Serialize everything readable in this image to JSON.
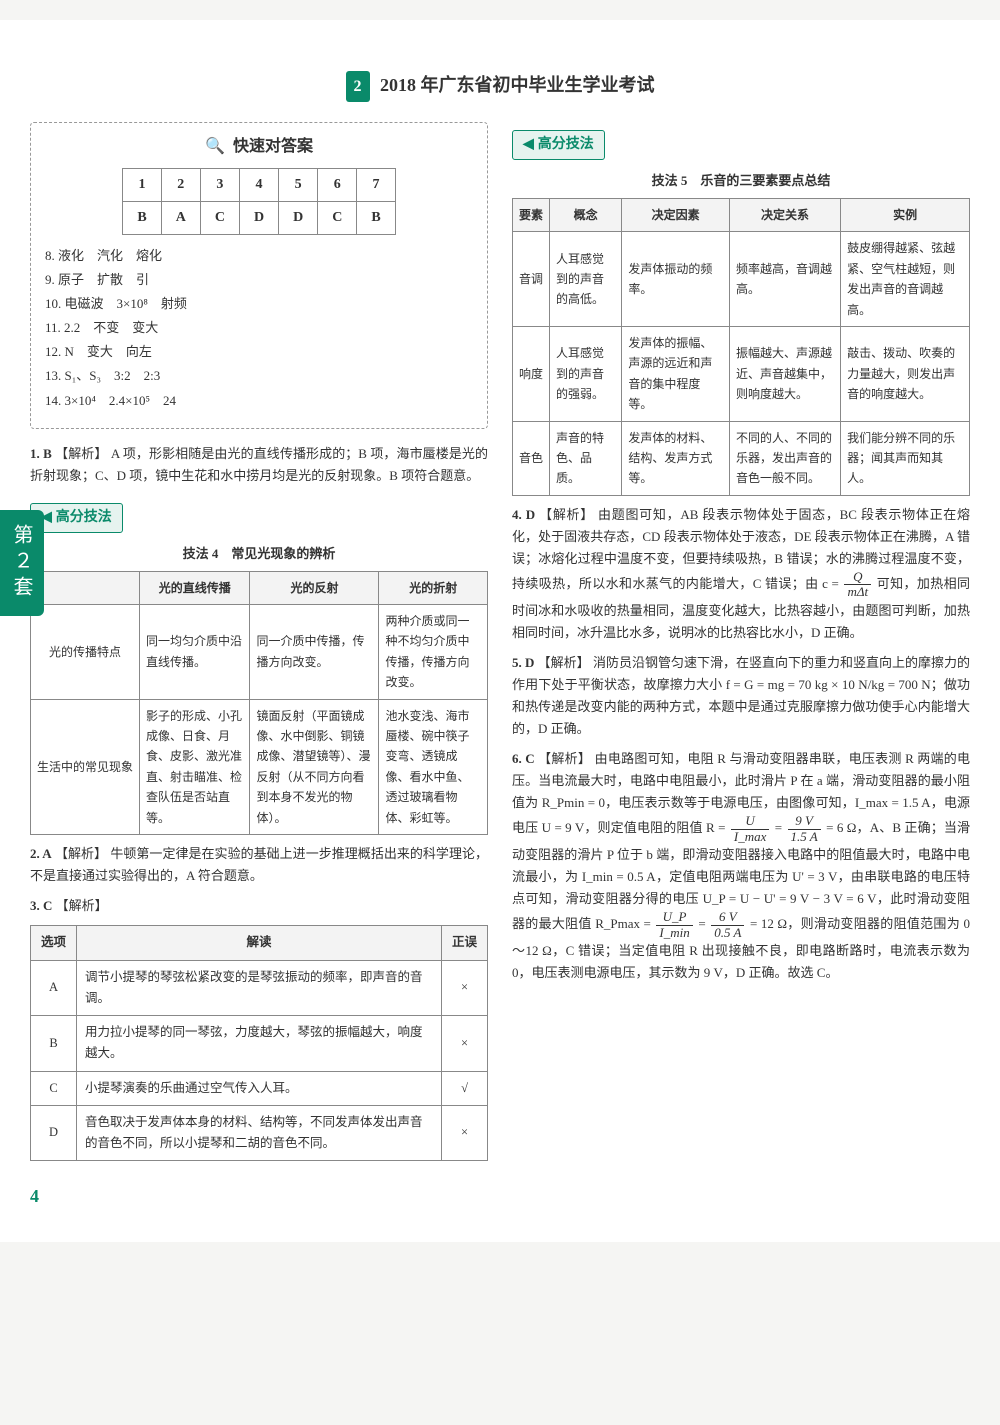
{
  "header": {
    "badge": "2",
    "title": "2018 年广东省初中毕业生学业考试"
  },
  "side_label": "第２套",
  "answerbox": {
    "title": "快速对答案",
    "mag_icon": "🔍",
    "nums": [
      "1",
      "2",
      "3",
      "4",
      "5",
      "6",
      "7"
    ],
    "keys": [
      "B",
      "A",
      "C",
      "D",
      "D",
      "C",
      "B"
    ],
    "lines": [
      "8. 液化　汽化　熔化",
      "9. 原子　扩散　引",
      "10. 电磁波　3×10⁸　射频",
      "11. 2.2　不变　变大",
      "12. N　变大　向左",
      "13. S₁、S₃　3:2　2:3",
      "14. 3×10⁴　2.4×10⁵　24"
    ]
  },
  "q1": {
    "num": "1. B",
    "tag": "【解析】",
    "text": "A 项，形影相随是由光的直线传播形成的；B 项，海市蜃楼是光的折射现象；C、D 项，镜中生花和水中捞月均是光的反射现象。B 项符合题意。"
  },
  "tips_label": "高分技法",
  "tips_icon": "◀",
  "method4": {
    "title": "技法 4　常见光现象的辨析",
    "headers": [
      "",
      "光的直线传播",
      "光的反射",
      "光的折射"
    ],
    "rows": [
      {
        "h": "光的传播特点",
        "c": [
          "同一均匀介质中沿直线传播。",
          "同一介质中传播，传播方向改变。",
          "两种介质或同一种不均匀介质中传播，传播方向改变。"
        ]
      },
      {
        "h": "生活中的常见现象",
        "c": [
          "影子的形成、小孔成像、日食、月食、皮影、激光准直、射击瞄准、检查队伍是否站直等。",
          "镜面反射（平面镜成像、水中倒影、铜镜成像、潜望镜等）、漫反射（从不同方向看到本身不发光的物体）。",
          "池水变浅、海市蜃楼、碗中筷子变弯、透镜成像、看水中鱼、透过玻璃看物体、彩虹等。"
        ]
      }
    ]
  },
  "q2": {
    "num": "2. A",
    "tag": "【解析】",
    "text": "牛顿第一定律是在实验的基础上进一步推理概括出来的科学理论，不是直接通过实验得出的，A 符合题意。"
  },
  "q3": {
    "num": "3. C",
    "tag": "【解析】",
    "tbl_headers": [
      "选项",
      "解读",
      "正误"
    ],
    "rows": [
      {
        "o": "A",
        "t": "调节小提琴的琴弦松紧改变的是琴弦振动的频率，即声音的音调。",
        "v": "×"
      },
      {
        "o": "B",
        "t": "用力拉小提琴的同一琴弦，力度越大，琴弦的振幅越大，响度越大。",
        "v": "×"
      },
      {
        "o": "C",
        "t": "小提琴演奏的乐曲通过空气传入人耳。",
        "v": "√"
      },
      {
        "o": "D",
        "t": "音色取决于发声体本身的材料、结构等，不同发声体发出声音的音色不同，所以小提琴和二胡的音色不同。",
        "v": "×"
      }
    ]
  },
  "method5": {
    "title": "技法 5　乐音的三要素要点总结",
    "headers": [
      "要素",
      "概念",
      "决定因素",
      "决定关系",
      "实例"
    ],
    "rows": [
      {
        "c": [
          "音调",
          "人耳感觉到的声音的高低。",
          "发声体振动的频率。",
          "频率越高，音调越高。",
          "鼓皮绷得越紧、弦越紧、空气柱越短，则发出声音的音调越高。"
        ]
      },
      {
        "c": [
          "响度",
          "人耳感觉到的声音的强弱。",
          "发声体的振幅、声源的远近和声音的集中程度等。",
          "振幅越大、声源越近、声音越集中，则响度越大。",
          "敲击、拨动、吹奏的力量越大，则发出声音的响度越大。"
        ]
      },
      {
        "c": [
          "音色",
          "声音的特色、品质。",
          "发声体的材料、结构、发声方式等。",
          "不同的人、不同的乐器，发出声音的音色一般不同。",
          "我们能分辨不同的乐器；闻其声而知其人。"
        ]
      }
    ]
  },
  "q4": {
    "num": "4. D",
    "tag": "【解析】",
    "text": "由题图可知，AB 段表示物体处于固态，BC 段表示物体正在熔化，处于固液共存态，CD 段表示物体处于液态，DE 段表示物体正在沸腾，A 错误；冰熔化过程中温度不变，但要持续吸热，B 错误；水的沸腾过程温度不变，持续吸热，所以水和水蒸气的内能增大，C 错误；由 c = ",
    "frac_n": "Q",
    "frac_d": "mΔt",
    "text2": " 可知，加热相同时间冰和水吸收的热量相同，温度变化越大，比热容越小，由题图可判断，加热相同时间，冰升温比水多，说明冰的比热容比水小，D 正确。"
  },
  "q5": {
    "num": "5. D",
    "tag": "【解析】",
    "text": "消防员沿钢管匀速下滑，在竖直向下的重力和竖直向上的摩擦力的作用下处于平衡状态，故摩擦力大小 f = G = mg = 70 kg × 10 N/kg = 700 N；做功和热传递是改变内能的两种方式，本题中是通过克服摩擦力做功使手心内能增大的，D 正确。"
  },
  "q6": {
    "num": "6. C",
    "tag": "【解析】",
    "text_a": "由电路图可知，电阻 R 与滑动变阻器串联，电压表测 R 两端的电压。当电流最大时，电路中电阻最小，此时滑片 P 在 a 端，滑动变阻器的最小阻值为 R_Pmin = 0，电压表示数等于电源电压，由图像可知，I_max = 1.5 A，电源电压 U = 9 V，则定值电阻的阻值 R = ",
    "f1n": "U",
    "f1d": "I_max",
    "text_b": " = ",
    "f2n": "9 V",
    "f2d": "1.5 A",
    "text_c": " = 6 Ω，A、B 正确；当滑动变阻器的滑片 P 位于 b 端，即滑动变阻器接入电路中的阻值最大时，电路中电流最小，为 I_min = 0.5 A，定值电阻两端电压为 U' = 3 V，由串联电路的电压特点可知，滑动变阻器分得的电压 U_P = U − U' = 9 V − 3 V = 6 V，此时滑动变阻器的最大阻值 R_Pmax = ",
    "f3n": "U_P",
    "f3d": "I_min",
    "text_d": " = ",
    "f4n": "6 V",
    "f4d": "0.5 A",
    "text_e": " = 12 Ω，则滑动变阻器的阻值范围为 0～12 Ω，C 错误；当定值电阻 R 出现接触不良，即电路断路时，电流表示数为 0，电压表测电源电压，其示数为 9 V，D 正确。故选 C。"
  },
  "page_number": "4"
}
